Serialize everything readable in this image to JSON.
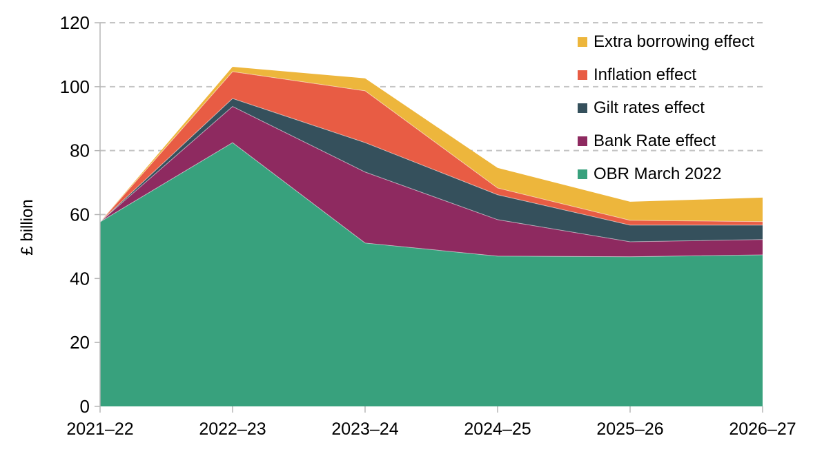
{
  "chart_data": {
    "type": "area",
    "stacked": true,
    "title": "",
    "xlabel": "",
    "ylabel": "£ billion",
    "categories": [
      "2021–22",
      "2022–23",
      "2023–24",
      "2024–25",
      "2025–26",
      "2026–27"
    ],
    "ylim": [
      0,
      120
    ],
    "yticks": [
      0,
      20,
      40,
      60,
      80,
      100,
      120
    ],
    "grid": "horizontal-dashed",
    "legend_position": "top-right",
    "series": [
      {
        "name": "OBR March 2022",
        "color": "#38A17D",
        "values": [
          57.7,
          82.5,
          51.1,
          47.0,
          46.8,
          47.4
        ]
      },
      {
        "name": "Bank Rate effect",
        "color": "#8E2A60",
        "values": [
          0,
          11.3,
          22.2,
          11.4,
          4.7,
          4.8
        ]
      },
      {
        "name": "Gilt rates effect",
        "color": "#35505C",
        "values": [
          0,
          2.5,
          9.2,
          7.8,
          5.2,
          4.5
        ]
      },
      {
        "name": "Inflation effect",
        "color": "#E85C44",
        "values": [
          0,
          8.4,
          16.2,
          2.1,
          1.5,
          1.1
        ]
      },
      {
        "name": "Extra borrowing effect",
        "color": "#EDB63C",
        "values": [
          0,
          1.5,
          3.9,
          6.3,
          5.8,
          7.5
        ]
      }
    ],
    "style": {
      "grid_color": "#c4c4c4",
      "axis_color": "#b6b6b6",
      "text_color": "#000000",
      "band_separator_color": "rgba(255,255,255,0.5)"
    }
  }
}
